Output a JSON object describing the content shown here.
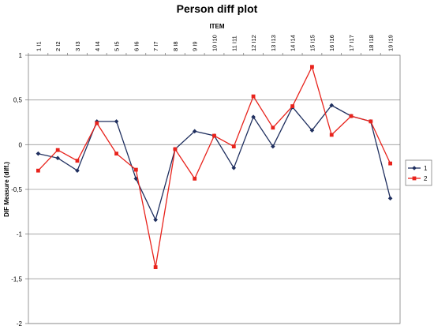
{
  "chart_data": {
    "type": "line",
    "title": "Person diff plot",
    "xlabel": "ITEM",
    "ylabel": "DIF Measure (diff.)",
    "categories": [
      "1 I1",
      "2 I2",
      "3 I3",
      "4 I4",
      "5 I5",
      "6 I6",
      "7 I7",
      "8 I8",
      "9 I9",
      "10 I10",
      "11 I11",
      "12 I12",
      "13 I13",
      "14 I14",
      "15 I15",
      "16 I16",
      "17 I17",
      "18 I18",
      "19 I19"
    ],
    "ylim": [
      -2,
      1
    ],
    "yticks": [
      "1",
      "0,5",
      "0",
      "-0,5",
      "-1",
      "-1,5",
      "-2"
    ],
    "grid": true,
    "legend_position": "right",
    "series": [
      {
        "name": "1",
        "color": "#1f2f5f",
        "marker": "diamond",
        "values": [
          -0.1,
          -0.15,
          -0.29,
          0.26,
          0.26,
          -0.38,
          -0.84,
          -0.05,
          0.15,
          0.1,
          -0.26,
          0.31,
          -0.02,
          0.42,
          0.16,
          0.44,
          0.32,
          0.26,
          -0.6
        ]
      },
      {
        "name": "2",
        "color": "#e8231c",
        "marker": "square",
        "values": [
          -0.29,
          -0.06,
          -0.18,
          0.24,
          -0.1,
          -0.28,
          -1.37,
          -0.05,
          -0.38,
          0.1,
          -0.02,
          0.54,
          0.19,
          0.43,
          0.87,
          0.11,
          0.32,
          0.26,
          -0.21
        ]
      }
    ]
  }
}
